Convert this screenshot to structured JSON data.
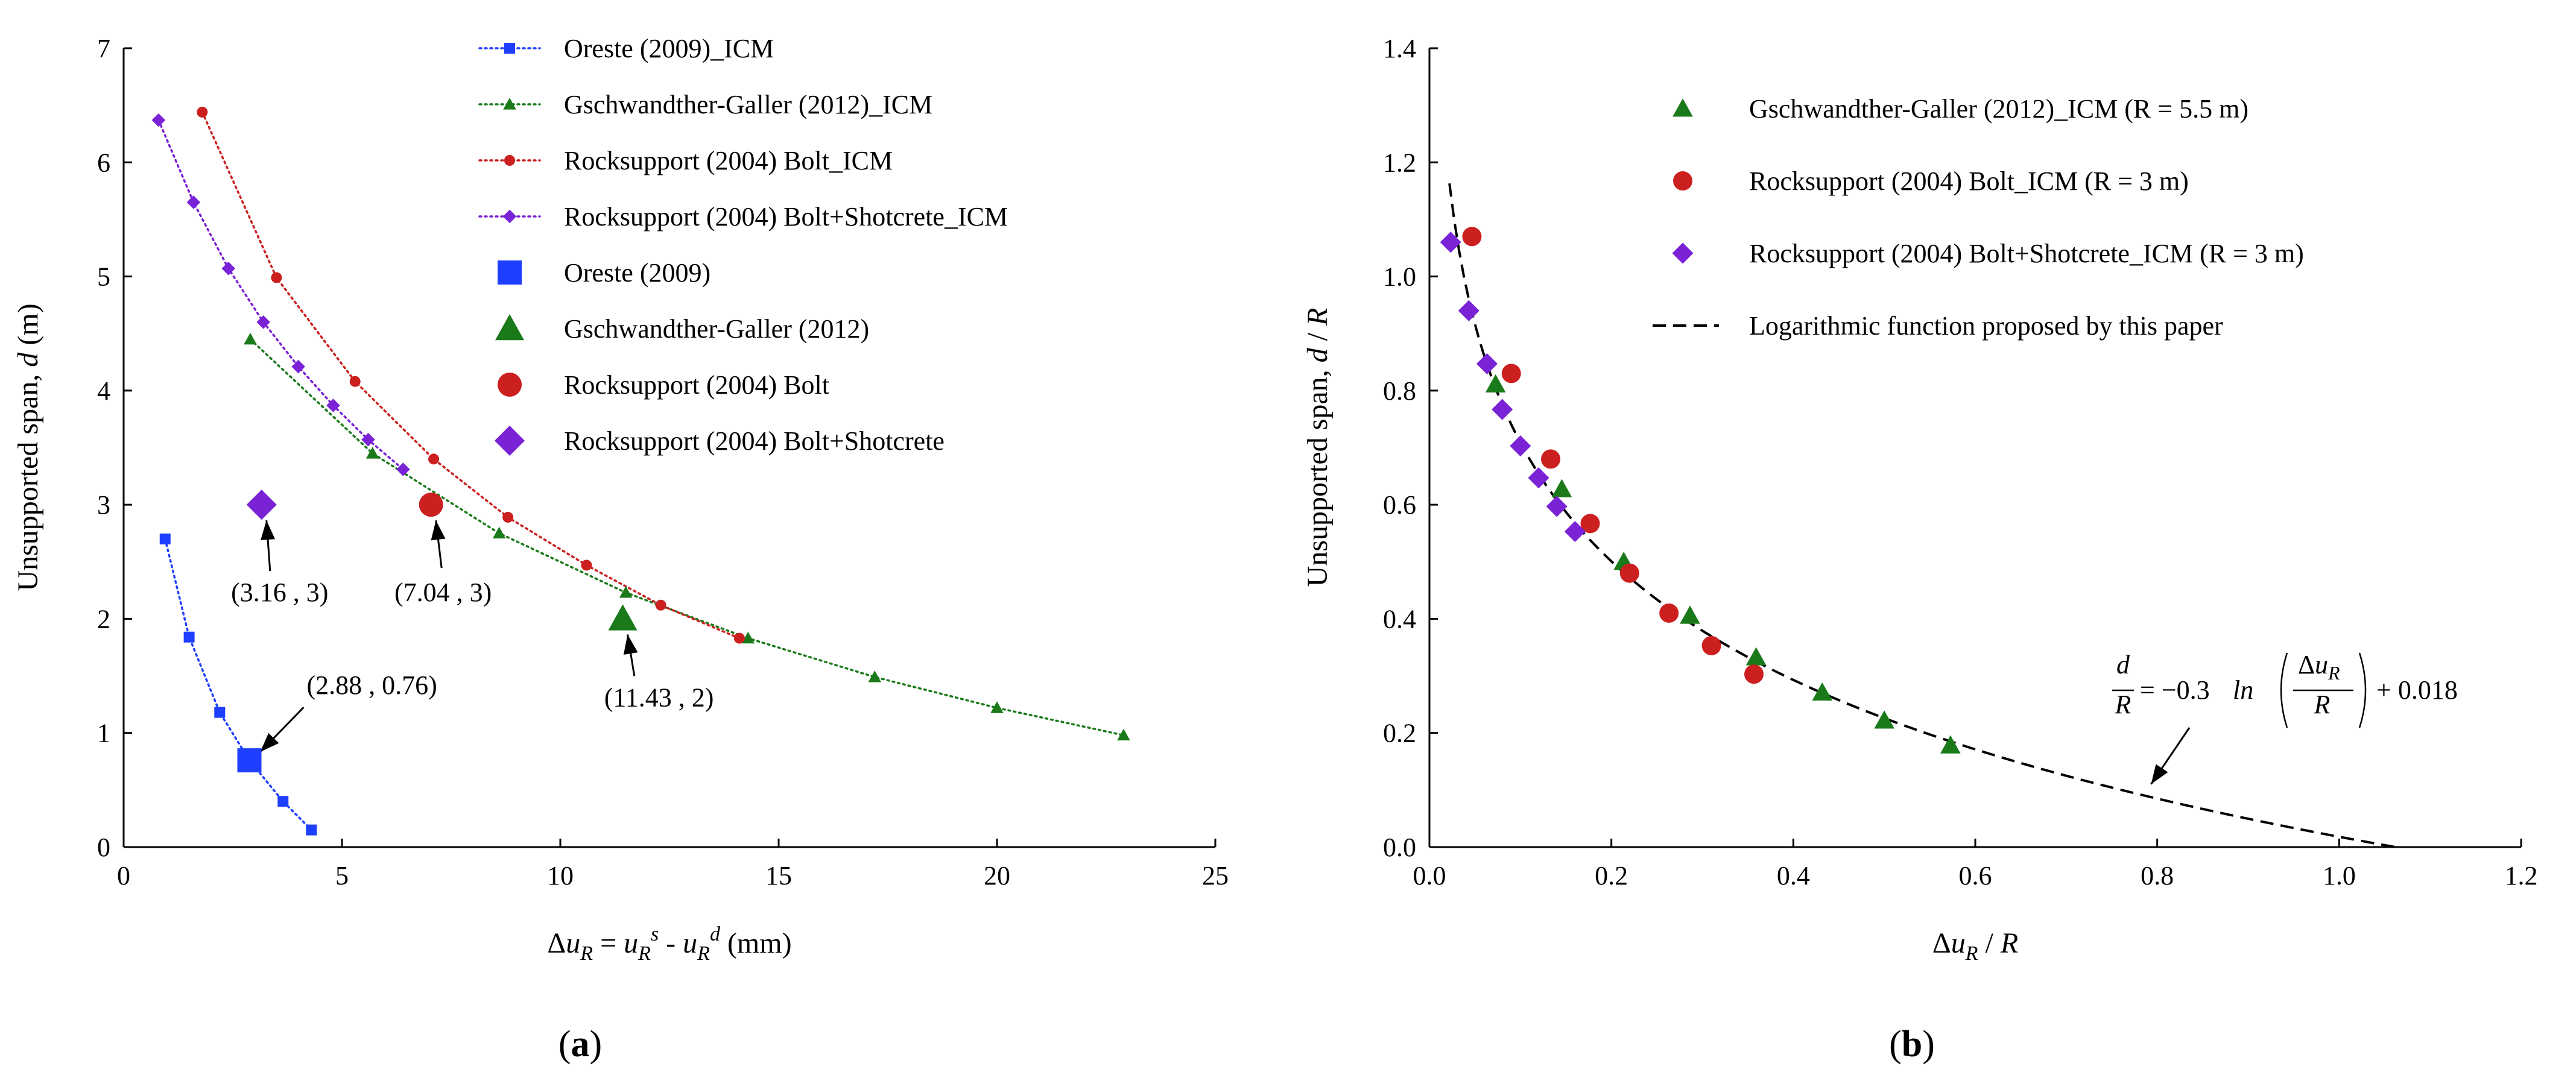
{
  "figure_labels": {
    "a_open": "(",
    "a_letter": "a",
    "a_close": ")",
    "b_open": "(",
    "b_letter": "b",
    "b_close": ")"
  },
  "colors": {
    "oreste": "#1f3fff",
    "gschwandther": "#1a7a1a",
    "bolt": "#cc1f1f",
    "shotcrete": "#7a22d6",
    "axis": "#000000"
  },
  "chart_data": [
    {
      "id": "a",
      "type": "scatter",
      "xlabel": {
        "delta": "Δ",
        "u1": "u",
        "s1": "R",
        "eq": " = ",
        "u2": "u",
        "s2": "R",
        "sp2": "s",
        "minus": " - ",
        "u3": "u",
        "s3": "R",
        "sp3": "d",
        "unit": "  (mm)"
      },
      "ylabel": {
        "main": "Unsupported span, ",
        "var": "d",
        "unit": "  (m)"
      },
      "xlim": [
        0,
        25
      ],
      "ylim": [
        0,
        7
      ],
      "xticks": [
        "0",
        "5",
        "10",
        "15",
        "20",
        "25"
      ],
      "yticks": [
        "0",
        "1",
        "2",
        "3",
        "4",
        "5",
        "6",
        "7"
      ],
      "series": [
        {
          "key": "oreste_icm",
          "name": "Oreste (2009)_ICM",
          "color_key": "oreste",
          "marker": "square",
          "size": "small",
          "line": "dotted",
          "x": [
            0.95,
            1.5,
            2.2,
            2.88,
            3.65,
            4.3
          ],
          "y": [
            2.7,
            1.84,
            1.18,
            0.76,
            0.4,
            0.15
          ]
        },
        {
          "key": "gsch_icm",
          "name": "Gschwandther-Galler (2012)_ICM",
          "color_key": "gschwandther",
          "marker": "triangle",
          "size": "small",
          "line": "dotted",
          "x": [
            2.9,
            5.7,
            8.6,
            11.5,
            14.3,
            17.2,
            20.0,
            22.9
          ],
          "y": [
            4.45,
            3.45,
            2.75,
            2.23,
            1.83,
            1.49,
            1.22,
            0.98
          ]
        },
        {
          "key": "bolt_icm",
          "name": "Rocksupport (2004) Bolt_ICM",
          "color_key": "bolt",
          "marker": "circle",
          "size": "small",
          "line": "dotted",
          "x": [
            1.8,
            3.5,
            5.3,
            7.1,
            8.8,
            10.6,
            12.3,
            14.1
          ],
          "y": [
            6.44,
            4.99,
            4.08,
            3.4,
            2.89,
            2.47,
            2.12,
            1.83
          ]
        },
        {
          "key": "shot_icm",
          "name": "Rocksupport (2004) Bolt+Shotcrete_ICM",
          "color_key": "shotcrete",
          "marker": "diamond",
          "size": "small",
          "line": "dotted",
          "x": [
            0.8,
            1.6,
            2.4,
            3.2,
            4.0,
            4.8,
            5.6,
            6.4
          ],
          "y": [
            6.37,
            5.65,
            5.07,
            4.6,
            4.21,
            3.87,
            3.57,
            3.31
          ]
        },
        {
          "key": "oreste",
          "name": "Oreste (2009)",
          "color_key": "oreste",
          "marker": "square",
          "size": "large",
          "line": "none",
          "x": [
            2.88
          ],
          "y": [
            0.76
          ]
        },
        {
          "key": "gsch",
          "name": "Gschwandther-Galler (2012)",
          "color_key": "gschwandther",
          "marker": "triangle",
          "size": "large",
          "line": "none",
          "x": [
            11.43
          ],
          "y": [
            2
          ]
        },
        {
          "key": "bolt",
          "name": "Rocksupport (2004) Bolt",
          "color_key": "bolt",
          "marker": "circle",
          "size": "large",
          "line": "none",
          "x": [
            7.04
          ],
          "y": [
            3
          ]
        },
        {
          "key": "shot",
          "name": "Rocksupport (2004) Bolt+Shotcrete",
          "color_key": "shotcrete",
          "marker": "diamond",
          "size": "large",
          "line": "none",
          "x": [
            3.16
          ],
          "y": [
            3
          ]
        }
      ],
      "annotations": [
        {
          "text": "(2.88 , 0.76)",
          "point": [
            2.88,
            0.76
          ]
        },
        {
          "text": "(3.16 , 3)",
          "point": [
            3.16,
            3
          ]
        },
        {
          "text": "(7.04 , 3)",
          "point": [
            7.04,
            3
          ]
        },
        {
          "text": "(11.43 , 2)",
          "point": [
            11.43,
            2
          ]
        }
      ],
      "legend_position": "top-right",
      "grid": false
    },
    {
      "id": "b",
      "type": "scatter",
      "xlabel": {
        "delta": "Δ",
        "u": "u",
        "sub": "R",
        "rest": " / ",
        "R": "R"
      },
      "ylabel": {
        "main": "Unsupported span, ",
        "var": "d",
        "rest": " / ",
        "R": "R"
      },
      "xlim": [
        0,
        1.2
      ],
      "ylim": [
        0,
        1.4
      ],
      "xticks": [
        "0.0",
        "0.2",
        "0.4",
        "0.6",
        "0.8",
        "1.0",
        "1.2"
      ],
      "yticks": [
        "0.0",
        "0.2",
        "0.4",
        "0.6",
        "0.8",
        "1.0",
        "1.2",
        "1.4"
      ],
      "series": [
        {
          "key": "gsch_n",
          "name": "Gschwandther-Galler (2012)_ICM  (R = 5.5 m)",
          "color_key": "gschwandther",
          "marker": "triangle",
          "x": [
            0.0727,
            0.1455,
            0.2136,
            0.2864,
            0.3591,
            0.4318,
            0.5,
            0.5727
          ],
          "y": [
            0.8109,
            0.6273,
            0.5,
            0.4055,
            0.3327,
            0.2709,
            0.2218,
            0.1782
          ]
        },
        {
          "key": "bolt_n",
          "name": "Rocksupport (2004) Bolt_ICM  (R = 3 m)",
          "color_key": "bolt",
          "marker": "circle",
          "x": [
            0.0467,
            0.09,
            0.1333,
            0.1767,
            0.22,
            0.2633,
            0.31,
            0.3567
          ],
          "y": [
            1.07,
            0.83,
            0.68,
            0.567,
            0.48,
            0.41,
            0.353,
            0.303
          ]
        },
        {
          "key": "shot_n",
          "name": "Rocksupport (2004) Bolt+Shotcrete_ICM  (R = 3 m)",
          "color_key": "shotcrete",
          "marker": "diamond",
          "x": [
            0.0233,
            0.0433,
            0.0633,
            0.08,
            0.1,
            0.12,
            0.14,
            0.16
          ],
          "y": [
            1.06,
            0.94,
            0.847,
            0.767,
            0.703,
            0.647,
            0.597,
            0.553
          ]
        },
        {
          "key": "fit",
          "name": "Logarithmic function proposed by this paper",
          "color_key": "axis",
          "line": "dashed",
          "function": "d/R = -0.3 ln(du/R) + 0.018",
          "x_range": [
            0.022,
            1.065
          ]
        }
      ],
      "equation": {
        "lhs_num": "d",
        "lhs_den": "R",
        "eq": " = −0.3",
        "ln": "ln",
        "du_d": "Δ",
        "du_u": "u",
        "du_s": "R",
        "den": "R",
        "plus": " + 0.018"
      },
      "equation_point": [
        0.78,
        0.1
      ],
      "legend_position": "top-right",
      "grid": false
    }
  ]
}
